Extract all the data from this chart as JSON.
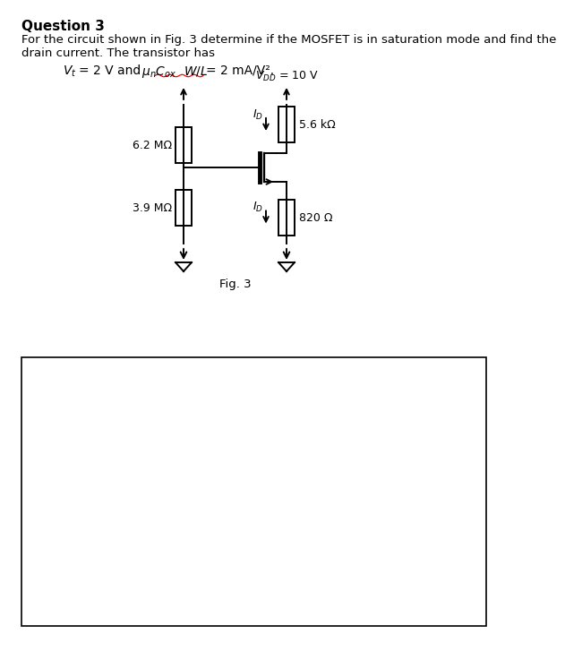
{
  "title": "Question 3",
  "question_line1": "For the circuit shown in Fig. 3 determine if the MOSFET is in saturation mode and find the",
  "question_line2": "drain current. The transistor has",
  "vdd_label": "V",
  "vdd_sub": "DD",
  "vdd_val": " = 10 V",
  "r1_label": "6.2 MΩ",
  "r2_label": "3.9 MΩ",
  "rd_label": "5.6 kΩ",
  "rs_label": "820 Ω",
  "id_label": "I",
  "id_sub": "D",
  "fig_label": "Fig. 3",
  "background_color": "#ffffff",
  "text_color": "#000000",
  "line_color": "#000000",
  "lw": 1.4
}
